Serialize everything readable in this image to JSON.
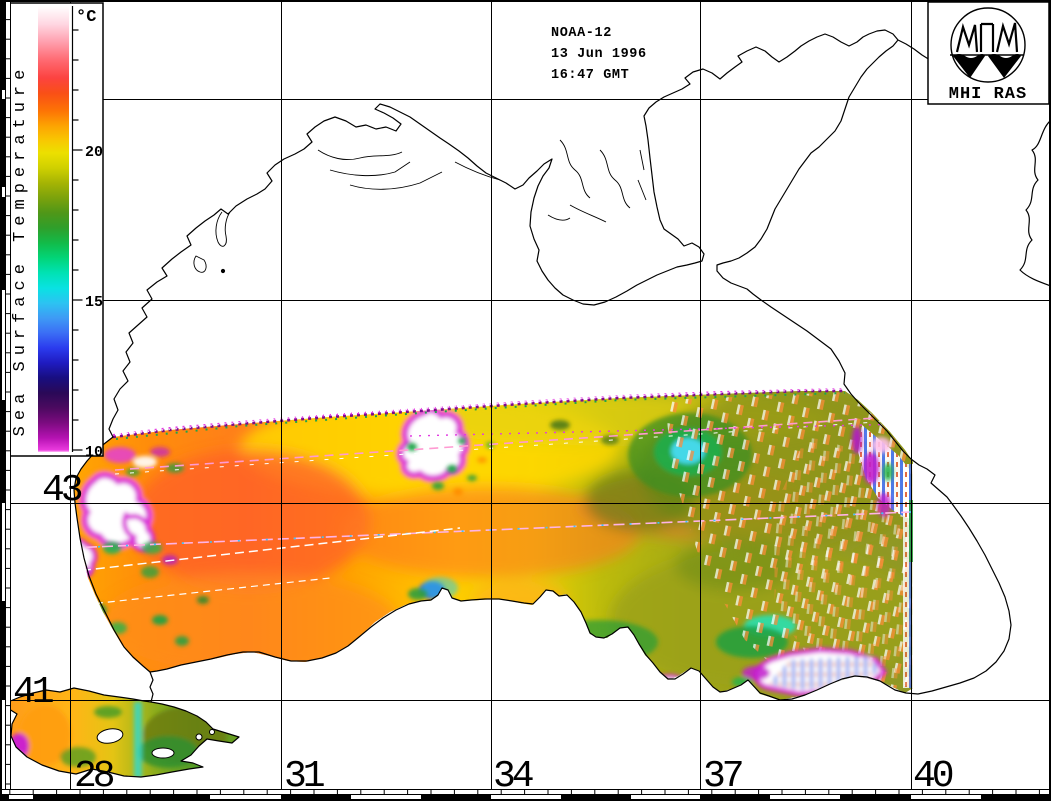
{
  "header": {
    "satellite": "NOAA-12",
    "date": "13 Jun 1996",
    "time": "16:47 GMT"
  },
  "logo": {
    "caption": "MHI RAS"
  },
  "colorbar": {
    "title": "Sea Surface Temperature",
    "unit": "°C",
    "major_ticks": [
      20,
      15,
      10
    ],
    "minor_tick_min": 11,
    "minor_tick_max": 24,
    "scale_top_value": 24.8,
    "scale_bottom_value": 9.9,
    "gradient": [
      {
        "t": 24.8,
        "c": "#ffffff"
      },
      {
        "t": 24.2,
        "c": "#ffd7e2"
      },
      {
        "t": 23.6,
        "c": "#ff9fae"
      },
      {
        "t": 23.0,
        "c": "#ff6a72"
      },
      {
        "t": 22.4,
        "c": "#fc4340"
      },
      {
        "t": 21.9,
        "c": "#f94f17"
      },
      {
        "t": 21.3,
        "c": "#fd7405"
      },
      {
        "t": 20.8,
        "c": "#fda402"
      },
      {
        "t": 20.3,
        "c": "#f8c901"
      },
      {
        "t": 19.9,
        "c": "#ece000"
      },
      {
        "t": 19.4,
        "c": "#cfd000"
      },
      {
        "t": 18.9,
        "c": "#a5b404"
      },
      {
        "t": 18.4,
        "c": "#7ba20c"
      },
      {
        "t": 17.9,
        "c": "#4f9718"
      },
      {
        "t": 17.4,
        "c": "#2f9f2b"
      },
      {
        "t": 16.9,
        "c": "#12bb49"
      },
      {
        "t": 16.4,
        "c": "#02d578"
      },
      {
        "t": 15.9,
        "c": "#00e2b4"
      },
      {
        "t": 15.4,
        "c": "#09e2e2"
      },
      {
        "t": 14.9,
        "c": "#2cc3f2"
      },
      {
        "t": 14.4,
        "c": "#3e9af5"
      },
      {
        "t": 13.9,
        "c": "#3b6ef5"
      },
      {
        "t": 13.4,
        "c": "#2b3bee"
      },
      {
        "t": 12.9,
        "c": "#1f1bc0"
      },
      {
        "t": 12.4,
        "c": "#180e80"
      },
      {
        "t": 11.9,
        "c": "#2a0957"
      },
      {
        "t": 11.4,
        "c": "#4c0a60"
      },
      {
        "t": 10.9,
        "c": "#7c0b80"
      },
      {
        "t": 10.4,
        "c": "#b512b2"
      },
      {
        "t": 10.0,
        "c": "#ea3ade"
      },
      {
        "t": 9.9,
        "c": "#ffbdf6"
      }
    ]
  },
  "map": {
    "lat_labels": [
      "43",
      "41"
    ],
    "lon_labels": [
      "28",
      "31",
      "34",
      "37",
      "40"
    ]
  },
  "chart_data": {
    "type": "heatmap",
    "title": "Sea Surface Temperature, Black Sea satellite scene",
    "annotations": [
      "NOAA-12",
      "13 Jun 1996",
      "16:47 GMT",
      "MHI RAS"
    ],
    "colorbar": {
      "label": "Sea Surface Temperature",
      "unit": "°C",
      "range": [
        10,
        25
      ],
      "labeled_ticks": [
        20,
        15,
        10
      ],
      "color_order_top_to_bottom": [
        "white",
        "pink",
        "red",
        "orange",
        "yellow",
        "olive",
        "green",
        "cyan",
        "blue",
        "navy",
        "dark-purple",
        "magenta",
        "light-pink"
      ]
    },
    "grid": {
      "longitude_ticks_deg_E": [
        28,
        31,
        34,
        37,
        40
      ],
      "latitude_ticks_deg_N": [
        43,
        41
      ],
      "grid_lines": "on"
    },
    "palette_notes": {
      "warm_west_basin": "#fd7405",
      "yellow_mid_basin": "#f0d400",
      "olive_east_basin": "#96992b",
      "cloud_mask_fill": "#ffffff",
      "cloud_mask_rim": "#d926d9",
      "cold_eddy_core": "#45d8e8"
    }
  }
}
